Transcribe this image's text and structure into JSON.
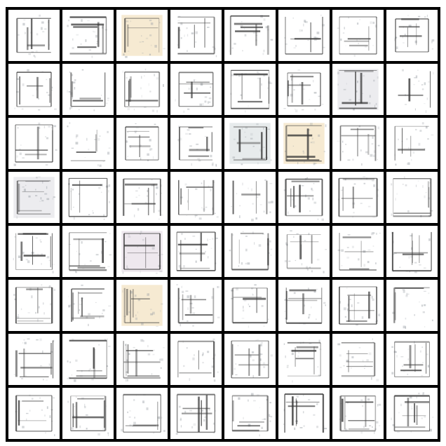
{
  "grid": {
    "rows": 8,
    "cols": 8,
    "tile_kind": "generated-floor-plan-sample",
    "background_color": "#000000",
    "tile_color": "#ffffff",
    "ink_color": "#3a3a3a",
    "tint_colors": [
      "#f3e3c3",
      "#e6e6ea",
      "#dfe4e6",
      "#e8e0e8"
    ],
    "tinted_tiles": [
      {
        "row": 0,
        "col": 2,
        "tint": 0
      },
      {
        "row": 2,
        "col": 5,
        "tint": 0
      },
      {
        "row": 5,
        "col": 2,
        "tint": 0
      },
      {
        "row": 2,
        "col": 4,
        "tint": 2
      },
      {
        "row": 1,
        "col": 6,
        "tint": 1
      },
      {
        "row": 4,
        "col": 2,
        "tint": 3
      },
      {
        "row": 3,
        "col": 0,
        "tint": 1
      }
    ]
  }
}
